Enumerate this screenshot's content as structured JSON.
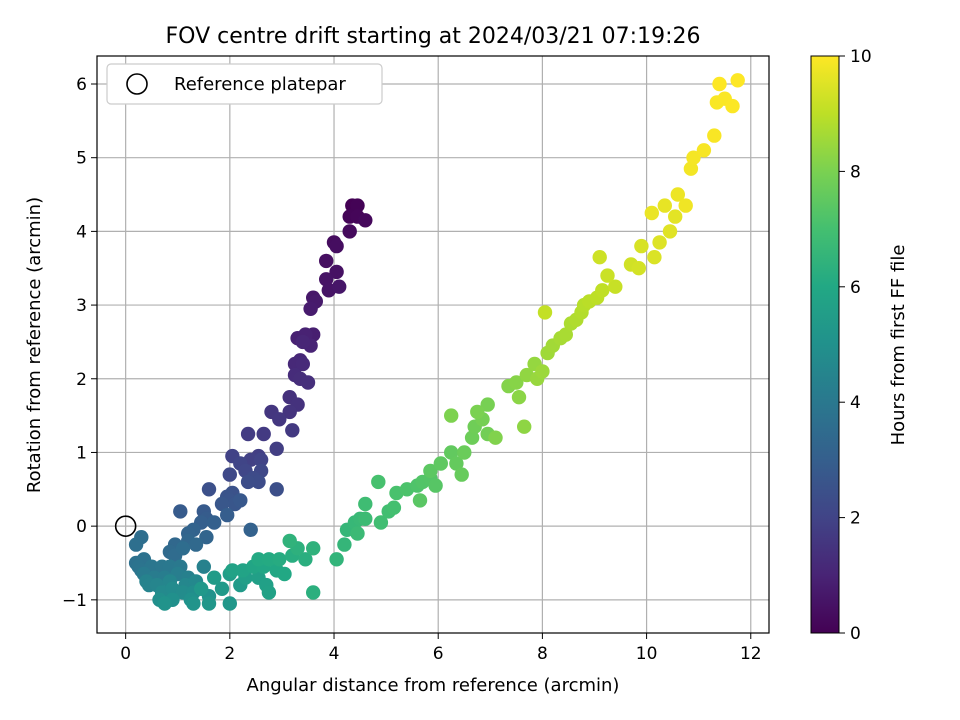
{
  "chart_data": {
    "type": "scatter",
    "title": "FOV centre drift starting at 2024/03/21 07:19:26",
    "xlabel": "Angular distance from reference (arcmin)",
    "ylabel": "Rotation from reference (arcmin)",
    "xlim": [
      -0.55,
      12.35
    ],
    "ylim": [
      -1.45,
      6.38
    ],
    "x_ticks": [
      "0",
      "2",
      "4",
      "6",
      "8",
      "10",
      "12"
    ],
    "y_ticks": [
      "−1",
      "0",
      "1",
      "2",
      "3",
      "4",
      "5",
      "6"
    ],
    "grid": true,
    "legend": {
      "position": "top-left",
      "entries": [
        "Reference platepar"
      ]
    },
    "reference_point": {
      "x": 0,
      "y": 0
    },
    "colorbar": {
      "label": "Hours from first FF file",
      "range": [
        0,
        10
      ],
      "ticks": [
        "0",
        "2",
        "4",
        "6",
        "8",
        "10"
      ],
      "colormap": "viridis"
    },
    "series": [
      {
        "hours": [
          0,
          10
        ],
        "description_points": [
          [
            4.35,
            4.35,
            0.0
          ],
          [
            4.45,
            4.35,
            0.05
          ],
          [
            4.3,
            4.2,
            0.1
          ],
          [
            4.45,
            4.2,
            0.15
          ],
          [
            4.6,
            4.15,
            0.2
          ],
          [
            4.3,
            4.0,
            0.25
          ],
          [
            4.0,
            3.85,
            0.3
          ],
          [
            4.05,
            3.8,
            0.35
          ],
          [
            3.85,
            3.6,
            0.4
          ],
          [
            4.05,
            3.45,
            0.45
          ],
          [
            3.85,
            3.35,
            0.5
          ],
          [
            3.9,
            3.2,
            0.55
          ],
          [
            4.1,
            3.25,
            0.6
          ],
          [
            3.6,
            3.1,
            0.65
          ],
          [
            3.65,
            3.05,
            0.7
          ],
          [
            3.55,
            2.95,
            0.75
          ],
          [
            3.6,
            2.6,
            0.85
          ],
          [
            3.3,
            2.55,
            0.9
          ],
          [
            3.45,
            2.6,
            0.95
          ],
          [
            3.55,
            2.45,
            1.0
          ],
          [
            3.4,
            2.5,
            1.05
          ],
          [
            3.35,
            2.25,
            1.1
          ],
          [
            3.25,
            2.2,
            1.15
          ],
          [
            3.4,
            2.2,
            1.2
          ],
          [
            3.25,
            2.05,
            1.25
          ],
          [
            3.35,
            2.0,
            1.3
          ],
          [
            3.5,
            1.95,
            1.35
          ],
          [
            3.15,
            1.75,
            1.4
          ],
          [
            3.3,
            1.65,
            1.45
          ],
          [
            3.15,
            1.55,
            1.5
          ],
          [
            2.8,
            1.55,
            1.55
          ],
          [
            2.95,
            1.45,
            1.6
          ],
          [
            3.2,
            1.3,
            1.65
          ],
          [
            2.65,
            1.25,
            1.7
          ],
          [
            2.35,
            1.25,
            1.75
          ],
          [
            2.9,
            1.05,
            1.8
          ],
          [
            2.55,
            0.95,
            1.85
          ],
          [
            2.4,
            0.9,
            1.9
          ],
          [
            2.05,
            0.95,
            1.95
          ],
          [
            2.6,
            0.9,
            2.0
          ],
          [
            2.2,
            0.85,
            2.05
          ],
          [
            2.3,
            0.75,
            2.1
          ],
          [
            2.6,
            0.75,
            2.15
          ],
          [
            2.0,
            0.7,
            2.2
          ],
          [
            2.45,
            0.65,
            2.25
          ],
          [
            2.55,
            0.6,
            2.3
          ],
          [
            2.35,
            0.6,
            2.35
          ],
          [
            2.9,
            0.5,
            2.4
          ],
          [
            1.6,
            0.5,
            2.45
          ],
          [
            2.05,
            0.45,
            2.5
          ],
          [
            1.95,
            0.4,
            2.55
          ],
          [
            2.0,
            0.35,
            2.6
          ],
          [
            2.1,
            0.3,
            2.65
          ],
          [
            1.85,
            0.3,
            2.7
          ],
          [
            2.2,
            0.35,
            2.75
          ],
          [
            1.5,
            0.2,
            2.8
          ],
          [
            1.05,
            0.2,
            2.85
          ],
          [
            1.55,
            0.1,
            2.9
          ],
          [
            1.95,
            0.15,
            2.95
          ],
          [
            1.45,
            0.05,
            3.0
          ],
          [
            1.7,
            0.05,
            3.05
          ],
          [
            2.4,
            -0.05,
            3.1
          ],
          [
            1.3,
            -0.05,
            3.15
          ],
          [
            1.2,
            -0.1,
            3.2
          ],
          [
            1.55,
            -0.15,
            3.25
          ],
          [
            1.2,
            -0.2,
            3.3
          ],
          [
            0.95,
            -0.25,
            3.35
          ],
          [
            1.35,
            -0.25,
            3.4
          ],
          [
            0.85,
            -0.35,
            3.45
          ],
          [
            0.95,
            -0.4,
            3.5
          ],
          [
            1.1,
            -0.3,
            3.55
          ],
          [
            0.3,
            -0.15,
            3.6
          ],
          [
            0.2,
            -0.25,
            3.65
          ],
          [
            0.2,
            -0.5,
            3.7
          ],
          [
            0.35,
            -0.45,
            3.75
          ],
          [
            0.25,
            -0.55,
            3.8
          ],
          [
            0.3,
            -0.6,
            3.85
          ],
          [
            0.5,
            -0.55,
            3.9
          ],
          [
            0.7,
            -0.55,
            3.95
          ],
          [
            0.85,
            -0.55,
            4.0
          ],
          [
            1.05,
            -0.55,
            4.05
          ],
          [
            0.35,
            -0.65,
            4.1
          ],
          [
            0.55,
            -0.7,
            4.15
          ],
          [
            0.75,
            -0.7,
            4.2
          ],
          [
            1.0,
            -0.65,
            4.25
          ],
          [
            1.2,
            -0.7,
            4.3
          ],
          [
            1.5,
            -0.55,
            4.35
          ],
          [
            0.4,
            -0.75,
            4.4
          ],
          [
            0.45,
            -0.8,
            4.45
          ],
          [
            0.6,
            -0.8,
            4.5
          ],
          [
            0.85,
            -0.75,
            4.55
          ],
          [
            1.15,
            -0.8,
            4.6
          ],
          [
            1.35,
            -0.75,
            4.65
          ],
          [
            0.7,
            -0.9,
            4.7
          ],
          [
            0.9,
            -0.85,
            4.75
          ],
          [
            1.1,
            -0.9,
            4.8
          ],
          [
            1.3,
            -0.9,
            4.85
          ],
          [
            0.65,
            -1.0,
            4.9
          ],
          [
            0.9,
            -1.0,
            4.95
          ],
          [
            1.25,
            -1.0,
            5.0
          ],
          [
            1.6,
            -0.95,
            5.05
          ],
          [
            0.75,
            -1.05,
            5.1
          ],
          [
            1.3,
            -1.05,
            5.15
          ],
          [
            1.6,
            -1.05,
            5.2
          ],
          [
            2.0,
            -1.05,
            5.25
          ],
          [
            1.45,
            -0.85,
            5.3
          ],
          [
            1.85,
            -0.85,
            5.35
          ],
          [
            2.2,
            -0.8,
            5.4
          ],
          [
            1.7,
            -0.7,
            5.45
          ],
          [
            2.0,
            -0.65,
            5.5
          ],
          [
            2.3,
            -0.7,
            5.55
          ],
          [
            2.55,
            -0.7,
            5.6
          ],
          [
            2.7,
            -0.8,
            5.65
          ],
          [
            2.75,
            -0.9,
            5.7
          ],
          [
            2.05,
            -0.6,
            5.75
          ],
          [
            2.25,
            -0.6,
            5.8
          ],
          [
            2.45,
            -0.55,
            5.85
          ],
          [
            2.65,
            -0.55,
            5.9
          ],
          [
            2.9,
            -0.6,
            5.95
          ],
          [
            3.05,
            -0.65,
            6.0
          ],
          [
            2.55,
            -0.45,
            6.05
          ],
          [
            2.75,
            -0.45,
            6.1
          ],
          [
            2.95,
            -0.45,
            6.15
          ],
          [
            3.2,
            -0.4,
            6.2
          ],
          [
            3.45,
            -0.45,
            6.25
          ],
          [
            3.6,
            -0.9,
            6.3
          ],
          [
            3.3,
            -0.3,
            6.35
          ],
          [
            3.6,
            -0.3,
            6.4
          ],
          [
            3.15,
            -0.2,
            6.45
          ],
          [
            4.05,
            -0.45,
            6.5
          ],
          [
            4.2,
            -0.25,
            6.55
          ],
          [
            4.25,
            -0.05,
            6.6
          ],
          [
            4.4,
            0.05,
            6.65
          ],
          [
            4.5,
            0.1,
            6.7
          ],
          [
            4.45,
            -0.1,
            6.75
          ],
          [
            4.6,
            0.1,
            6.8
          ],
          [
            4.6,
            0.3,
            6.85
          ],
          [
            4.9,
            0.05,
            6.9
          ],
          [
            5.05,
            0.2,
            6.95
          ],
          [
            5.15,
            0.25,
            7.0
          ],
          [
            4.85,
            0.6,
            7.05
          ],
          [
            5.2,
            0.45,
            7.1
          ],
          [
            5.4,
            0.5,
            7.15
          ],
          [
            5.6,
            0.55,
            7.2
          ],
          [
            5.7,
            0.6,
            7.25
          ],
          [
            5.85,
            0.65,
            7.3
          ],
          [
            5.95,
            0.55,
            7.35
          ],
          [
            5.65,
            0.35,
            7.4
          ],
          [
            5.85,
            0.75,
            7.45
          ],
          [
            6.05,
            0.85,
            7.5
          ],
          [
            6.25,
            1.0,
            7.55
          ],
          [
            6.35,
            0.85,
            7.6
          ],
          [
            6.45,
            0.7,
            7.65
          ],
          [
            6.5,
            1.0,
            7.7
          ],
          [
            6.65,
            1.2,
            7.75
          ],
          [
            6.7,
            1.35,
            7.8
          ],
          [
            6.95,
            1.25,
            7.85
          ],
          [
            6.85,
            1.45,
            7.9
          ],
          [
            6.95,
            1.65,
            7.95
          ],
          [
            6.75,
            1.55,
            8.0
          ],
          [
            6.25,
            1.5,
            8.05
          ],
          [
            7.1,
            1.2,
            8.1
          ],
          [
            7.35,
            1.9,
            8.15
          ],
          [
            7.5,
            1.95,
            8.2
          ],
          [
            7.55,
            1.75,
            8.25
          ],
          [
            7.65,
            1.35,
            8.3
          ],
          [
            7.7,
            2.05,
            8.35
          ],
          [
            7.85,
            2.2,
            8.4
          ],
          [
            7.9,
            2.0,
            8.45
          ],
          [
            8.0,
            2.1,
            8.5
          ],
          [
            8.1,
            2.35,
            8.55
          ],
          [
            8.2,
            2.45,
            8.6
          ],
          [
            8.35,
            2.55,
            8.65
          ],
          [
            8.45,
            2.6,
            8.7
          ],
          [
            8.55,
            2.75,
            8.75
          ],
          [
            8.65,
            2.8,
            8.8
          ],
          [
            8.75,
            2.9,
            8.85
          ],
          [
            8.8,
            3.0,
            8.9
          ],
          [
            8.9,
            3.05,
            8.95
          ],
          [
            9.05,
            3.1,
            9.0
          ],
          [
            9.15,
            3.2,
            9.05
          ],
          [
            8.05,
            2.9,
            9.1
          ],
          [
            9.4,
            3.25,
            9.15
          ],
          [
            9.25,
            3.4,
            9.2
          ],
          [
            9.1,
            3.65,
            9.25
          ],
          [
            9.7,
            3.55,
            9.3
          ],
          [
            9.85,
            3.5,
            9.35
          ],
          [
            9.9,
            3.8,
            9.4
          ],
          [
            10.15,
            3.65,
            9.45
          ],
          [
            10.25,
            3.85,
            9.5
          ],
          [
            10.45,
            4.0,
            9.55
          ],
          [
            10.55,
            4.2,
            9.6
          ],
          [
            10.35,
            4.35,
            9.65
          ],
          [
            10.1,
            4.25,
            9.7
          ],
          [
            10.6,
            4.5,
            9.75
          ],
          [
            10.75,
            4.35,
            9.8
          ],
          [
            10.85,
            4.85,
            9.85
          ],
          [
            10.9,
            5.0,
            9.88
          ],
          [
            11.1,
            5.1,
            9.9
          ],
          [
            11.3,
            5.3,
            9.92
          ],
          [
            11.35,
            5.75,
            9.94
          ],
          [
            11.5,
            5.8,
            9.96
          ],
          [
            11.65,
            5.7,
            9.98
          ],
          [
            11.4,
            6.0,
            10.0
          ],
          [
            11.75,
            6.05,
            10.0
          ]
        ]
      }
    ]
  }
}
